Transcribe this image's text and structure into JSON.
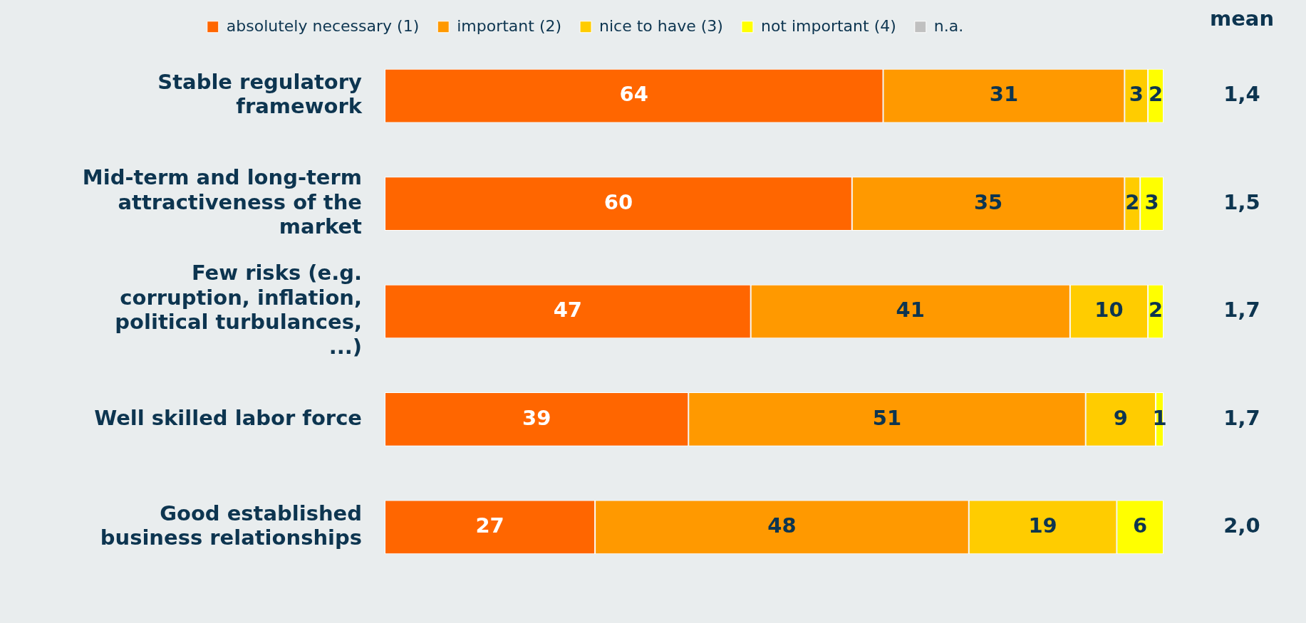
{
  "chart_data": {
    "type": "bar",
    "orientation": "horizontal",
    "stacked": true,
    "categories": [
      "Stable regulatory framework",
      "Mid-term and long-term attractiveness of the market",
      "Few risks (e.g. corruption, inflation, political turbulances, ...)",
      "Well skilled labor force",
      "Good established business relationships"
    ],
    "series": [
      {
        "name": "absolutely necessary (1)",
        "color": "#ff6600",
        "values": [
          64,
          60,
          47,
          39,
          27
        ]
      },
      {
        "name": "important (2)",
        "color": "#ff9900",
        "values": [
          31,
          35,
          41,
          51,
          48
        ]
      },
      {
        "name": "nice to have (3)",
        "color": "#ffcc00",
        "values": [
          3,
          2,
          10,
          9,
          19
        ]
      },
      {
        "name": "not important (4)",
        "color": "#ffff00",
        "values": [
          2,
          3,
          2,
          1,
          6
        ]
      },
      {
        "name": "n.a.",
        "color": "#c0c0c0",
        "values": [
          null,
          null,
          null,
          null,
          null
        ]
      }
    ],
    "xlim": [
      0,
      100
    ],
    "data_labels": true,
    "tick_labels": "y",
    "legend": "top",
    "annotations": [
      "mean",
      "1,4",
      "1,5",
      "1,7",
      "1,7",
      "2,0"
    ]
  }
}
